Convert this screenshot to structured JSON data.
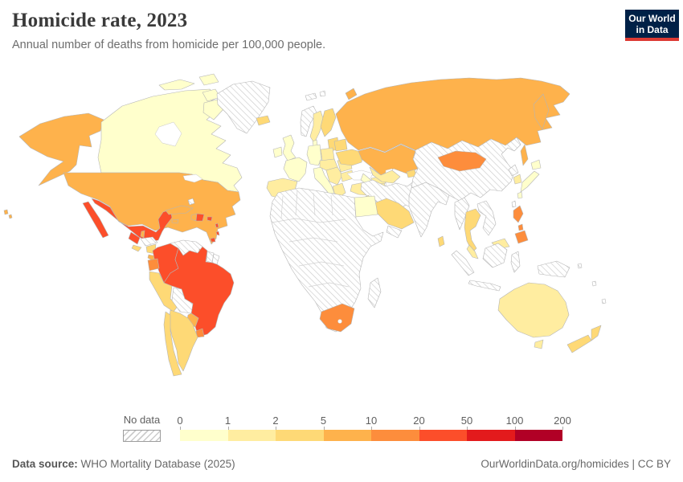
{
  "header": {
    "title": "Homicide rate, 2023",
    "subtitle": "Annual number of deaths from homicide per 100,000 people."
  },
  "logo": {
    "line1": "Our World",
    "line2": "in Data",
    "bg": "#002147",
    "accent": "#dc3a33"
  },
  "legend": {
    "no_data_label": "No data",
    "ticks": [
      "0",
      "1",
      "2",
      "5",
      "10",
      "20",
      "50",
      "100",
      "200"
    ],
    "bins": [
      {
        "range": "0-1",
        "color": "#FFFFCC"
      },
      {
        "range": "1-2",
        "color": "#FFEDA0"
      },
      {
        "range": "2-5",
        "color": "#FED976"
      },
      {
        "range": "5-10",
        "color": "#FEB24C"
      },
      {
        "range": "10-20",
        "color": "#FD8D3C"
      },
      {
        "range": "20-50",
        "color": "#FC4E2A"
      },
      {
        "range": "50-100",
        "color": "#E31A1C"
      },
      {
        "range": "100-200",
        "color": "#B10026"
      }
    ]
  },
  "footer": {
    "source_label": "Data source:",
    "source_text": " WHO Mortality Database (2025)",
    "right_text": "OurWorldinData.org/homicides | CC BY"
  },
  "map": {
    "border_color": "#b5b5b5",
    "no_data_style": "hatched",
    "regions": {
      "water": "#ffffff",
      "canada": "#FFFFCC",
      "greenland": "nodata",
      "iceland": "#FED976",
      "usa": "#FEB24C",
      "mexico": "#FC4E2A",
      "guatemala": "#FC4E2A",
      "belize": "#FEB24C",
      "honduras": "nodata",
      "el_salvador": "#FED976",
      "nicaragua": "#FED976",
      "costa_rica": "#FEB24C",
      "panama": "#FEB24C",
      "cuba": "#FEB24C",
      "jamaica": "#FEB24C",
      "haiti": "#FEB24C",
      "dominican_republic": "#FC4E2A",
      "puerto_rico": "#FC4E2A",
      "bahamas": "nodata",
      "lesser_antilles": "#FC4E2A",
      "colombia": "#FC4E2A",
      "venezuela": "nodata",
      "guyana": "#FD8D3C",
      "suriname": "nodata",
      "french_guiana": "nodata",
      "ecuador": "#FD8D3C",
      "peru": "#FED976",
      "brazil": "#FC4E2A",
      "bolivia": "nodata",
      "paraguay": "#FEB24C",
      "uruguay": "#FD8D3C",
      "argentina": "#FED976",
      "chile": "#FED976",
      "ireland": "#FFFFCC",
      "uk": "#FFFFCC",
      "norway": "nodata",
      "sweden": "#FFEDA0",
      "finland": "#FED976",
      "denmark": "#FFFFCC",
      "baltics": "#FED976",
      "poland": "#FFEDA0",
      "germany": "#FFFFCC",
      "france": "#FFFFCC",
      "spain_portugal": "#FFEDA0",
      "italy": "#FFFFCC",
      "central_europe": "#FFEDA0",
      "balkans": "#FFEDA0",
      "greece": "#FFEDA0",
      "romania": "#FFEDA0",
      "bulgaria": "#FFEDA0",
      "belarus": "#FED976",
      "ukraine": "#FED976",
      "turkey": "#FFEDA0",
      "caucasus": "#FFEDA0",
      "svalbard": "nodata",
      "russia": "#FEB24C",
      "kazakhstan": "#FEB24C",
      "uzbekistan": "#FFEDA0",
      "turkmenistan": "#FFFFCC",
      "kyrgyzstan": "#FED976",
      "middle_east": "nodata",
      "israel_jordan": "#FFEDA0",
      "saudi_arabia": "#FED976",
      "oman": "#FFEDA0",
      "yemen": "nodata",
      "egypt": "#FFFFCC",
      "africa": "nodata",
      "south_africa": "#FD8D3C",
      "madagascar": "nodata",
      "india": "nodata",
      "sri_lanka": "#FED976",
      "china": "nodata",
      "mongolia": "#FD8D3C",
      "north_korea": "nodata",
      "south_korea": "#FFEDA0",
      "japan": "#FFFFCC",
      "taiwan": "nodata",
      "myanmar": "nodata",
      "thailand": "#FED976",
      "indochina": "nodata",
      "malaysia": "#FFEDA0",
      "indonesia": "nodata",
      "philippines": "#FD8D3C",
      "new_guinea": "nodata",
      "pacific_islands": "nodata",
      "australia": "#FFEDA0",
      "tasmania": "#FFEDA0",
      "new_zealand": "#FED976"
    }
  }
}
